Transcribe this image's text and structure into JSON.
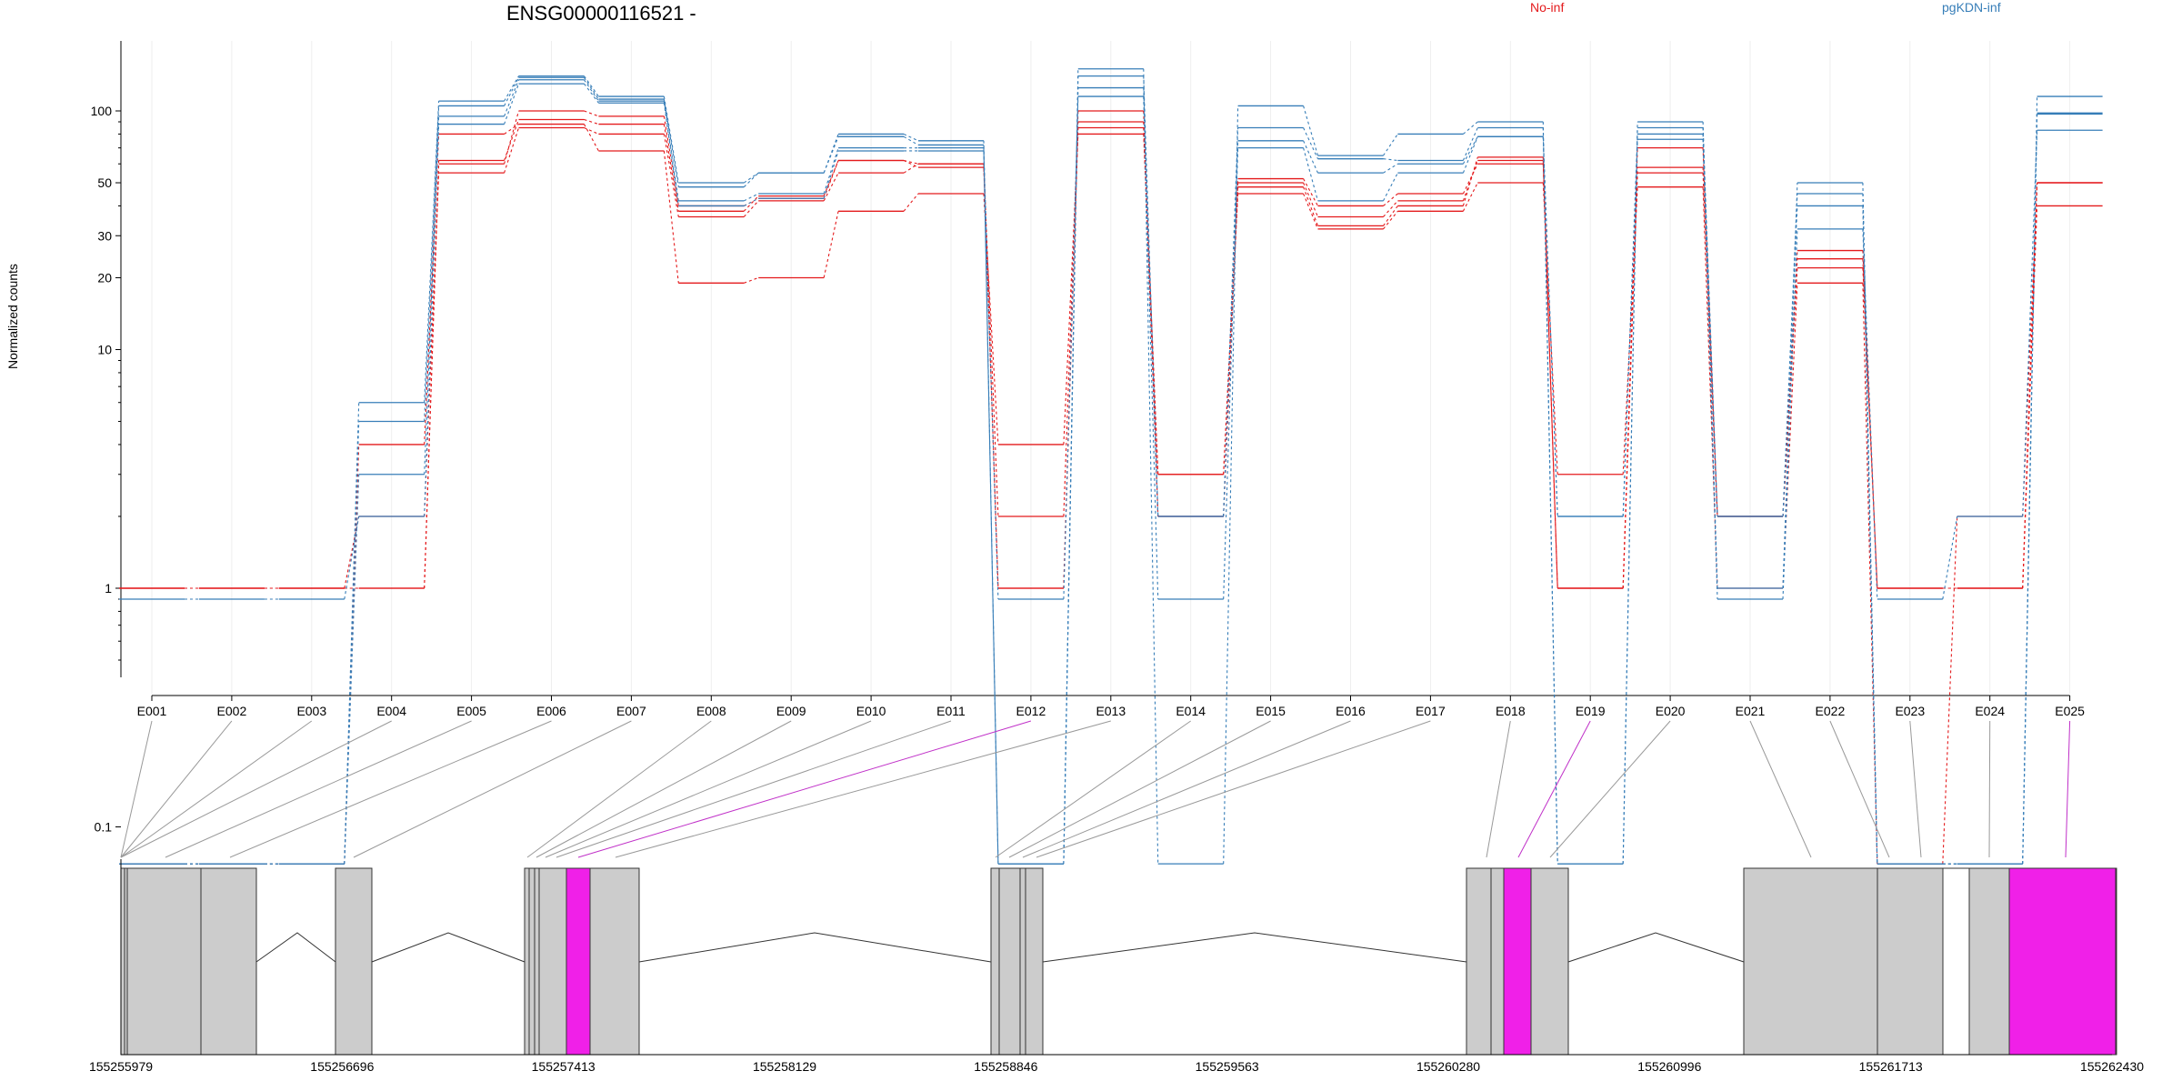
{
  "chart_data": {
    "type": "line",
    "title": "ENSG00000116521 -",
    "ylabel": "Normalized counts",
    "yscale": "log",
    "yticks": [
      "0.1",
      "1",
      "10",
      "20",
      "30",
      "50",
      "100"
    ],
    "grid": true,
    "legend_placement": "top",
    "groups": [
      {
        "name": "No-inf",
        "color": "#E41A1C"
      },
      {
        "name": "pgKDN-inf",
        "color": "#377EB8"
      }
    ],
    "categories": [
      "E001",
      "E002",
      "E003",
      "E004",
      "E005",
      "E006",
      "E007",
      "E008",
      "E009",
      "E010",
      "E011",
      "E012",
      "E013",
      "E014",
      "E015",
      "E016",
      "E017",
      "E018",
      "E019",
      "E020",
      "E021",
      "E022",
      "E023",
      "E024",
      "E025"
    ],
    "series": [
      {
        "group": "No-inf",
        "values": [
          1,
          1,
          1,
          1,
          60,
          100,
          95,
          40,
          43,
          62,
          60,
          1,
          100,
          2,
          52,
          40,
          45,
          60,
          1,
          55,
          2,
          26,
          1,
          1,
          50
        ]
      },
      {
        "group": "No-inf",
        "values": [
          1,
          1,
          1,
          1,
          62,
          92,
          88,
          38,
          44,
          62,
          58,
          1,
          85,
          3,
          50,
          36,
          42,
          62,
          1,
          58,
          2,
          22,
          1,
          1,
          50
        ]
      },
      {
        "group": "No-inf",
        "values": [
          1,
          1,
          1,
          2,
          55,
          85,
          80,
          36,
          42,
          55,
          60,
          2,
          90,
          2,
          48,
          33,
          40,
          64,
          1,
          70,
          2,
          24,
          1,
          1,
          40
        ]
      },
      {
        "group": "No-inf",
        "values": [
          0.07,
          0.07,
          0.07,
          4,
          80,
          88,
          68,
          19,
          20,
          38,
          45,
          4,
          80,
          3,
          45,
          32,
          38,
          50,
          3,
          48,
          1,
          19,
          0.07,
          2,
          50
        ]
      },
      {
        "group": "pgKDN-inf",
        "values": [
          0.07,
          0.07,
          0.07,
          6,
          110,
          140,
          115,
          50,
          55,
          80,
          75,
          0.07,
          150,
          0.07,
          105,
          65,
          80,
          90,
          0.07,
          90,
          1,
          50,
          0.07,
          0.07,
          115
        ]
      },
      {
        "group": "pgKDN-inf",
        "values": [
          0.07,
          0.07,
          0.07,
          5,
          105,
          138,
          112,
          48,
          55,
          78,
          72,
          0.07,
          140,
          2,
          85,
          63,
          62,
          85,
          0.07,
          85,
          2,
          45,
          0.07,
          0.07,
          98
        ]
      },
      {
        "group": "pgKDN-inf",
        "values": [
          0.07,
          0.07,
          0.07,
          3,
          95,
          135,
          110,
          42,
          45,
          70,
          70,
          0.07,
          125,
          2,
          75,
          55,
          60,
          78,
          2,
          80,
          2,
          40,
          0.07,
          0.07,
          97
        ]
      },
      {
        "group": "pgKDN-inf",
        "values": [
          0.9,
          0.9,
          0.9,
          2,
          88,
          130,
          108,
          40,
          43,
          68,
          68,
          0.9,
          115,
          0.9,
          70,
          42,
          55,
          78,
          2,
          76,
          0.9,
          32,
          0.9,
          2,
          83
        ]
      }
    ],
    "highlighted_exons": [
      "E012",
      "E019",
      "E025"
    ],
    "genomic_ticks": [
      "155255979",
      "155256696",
      "155257413",
      "155258129",
      "155258846",
      "155259563",
      "155260280",
      "155260996",
      "155261713",
      "155262430"
    ],
    "highlight_color": "#F020E8",
    "exon_color": "#CCCCCC"
  }
}
